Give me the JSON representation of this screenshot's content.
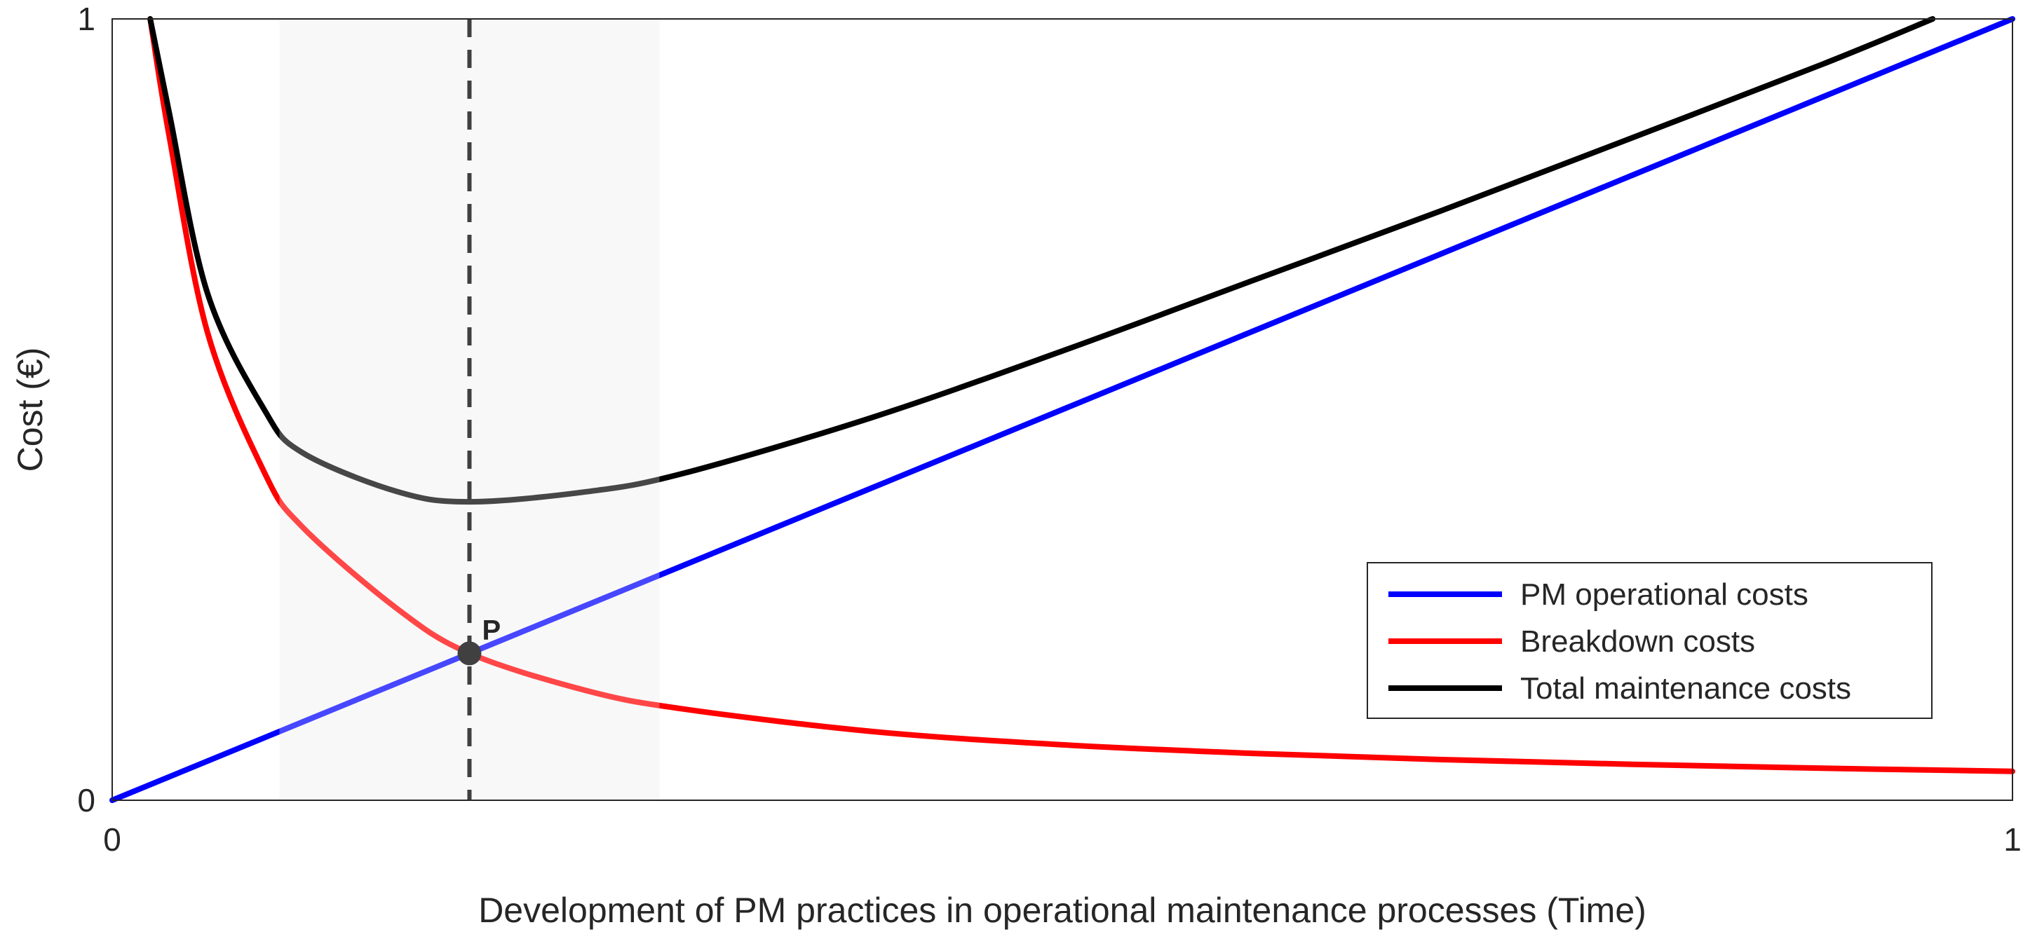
{
  "chart_data": {
    "type": "line",
    "title": "",
    "xlabel": "Development of PM practices in operational maintenance processes (Time)",
    "ylabel": "Cost (€)",
    "xlim": [
      0,
      1
    ],
    "ylim": [
      0,
      1
    ],
    "x_ticks": [
      {
        "value": 0,
        "label": "0"
      },
      {
        "value": 1,
        "label": "1"
      }
    ],
    "y_ticks": [
      {
        "value": 0,
        "label": "0"
      },
      {
        "value": 1,
        "label": "1"
      }
    ],
    "grid": false,
    "legend_position": "bottom-right",
    "highlight_region": {
      "x": [
        0.088,
        0.288
      ],
      "color": "#f5f5f5"
    },
    "marker": {
      "x": 0.188,
      "y": 0.188,
      "label": "P",
      "color": "#404040"
    },
    "vertical_line": {
      "x": 0.188,
      "style": "dashed",
      "color": "#404040"
    },
    "series": [
      {
        "name": "PM operational costs",
        "color": "#0000ff",
        "x": [
          0,
          0.1,
          0.2,
          0.3,
          0.4,
          0.5,
          0.6,
          0.7,
          0.8,
          0.9,
          1.0
        ],
        "y": [
          0,
          0.1,
          0.2,
          0.3,
          0.4,
          0.5,
          0.6,
          0.7,
          0.8,
          0.9,
          1.0
        ]
      },
      {
        "name": "Breakdown costs",
        "color": "#ff0000",
        "x": [
          0.02,
          0.03,
          0.05,
          0.08,
          0.1,
          0.15,
          0.188,
          0.25,
          0.3,
          0.4,
          0.5,
          0.6,
          0.7,
          0.8,
          0.9,
          1.0
        ],
        "y": [
          1.0,
          0.85,
          0.6,
          0.42,
          0.35,
          0.245,
          0.188,
          0.14,
          0.117,
          0.088,
          0.071,
          0.06,
          0.052,
          0.046,
          0.041,
          0.037
        ]
      },
      {
        "name": "Total maintenance costs",
        "color": "#000000",
        "x": [
          0.02,
          0.03,
          0.05,
          0.08,
          0.1,
          0.15,
          0.188,
          0.25,
          0.3,
          0.4,
          0.5,
          0.6,
          0.7,
          0.8,
          0.9,
          0.958
        ],
        "y": [
          1.0,
          0.88,
          0.65,
          0.5,
          0.445,
          0.395,
          0.382,
          0.395,
          0.418,
          0.49,
          0.575,
          0.665,
          0.755,
          0.848,
          0.942,
          1.0
        ]
      }
    ]
  }
}
